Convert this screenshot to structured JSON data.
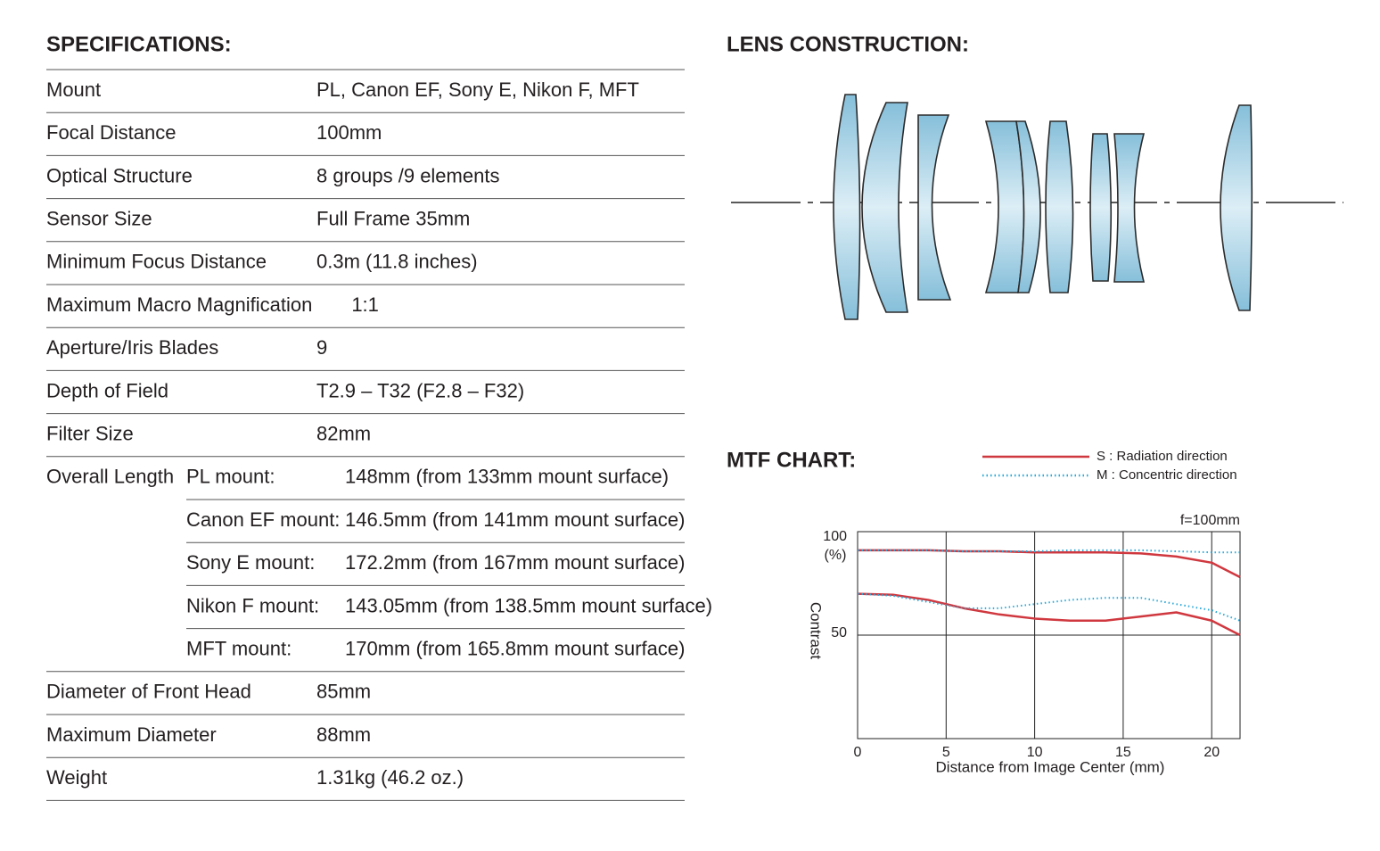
{
  "specifications": {
    "title": "SPECIFICATIONS:",
    "rows": [
      {
        "label": "Mount",
        "value": "PL, Canon EF, Sony E, Nikon F, MFT"
      },
      {
        "label": "Focal Distance",
        "value": "100mm"
      },
      {
        "label": "Optical Structure",
        "value": "8 groups /9 elements"
      },
      {
        "label": "Sensor Size",
        "value": "Full Frame 35mm"
      },
      {
        "label": "Minimum Focus Distance",
        "value": "0.3m (11.8 inches)"
      },
      {
        "label": "Maximum Macro Magnification",
        "value": "1:1"
      },
      {
        "label": "Aperture/Iris Blades",
        "value": "9"
      },
      {
        "label": "Depth of Field",
        "value": "T2.9 – T32 (F2.8 – F32)"
      },
      {
        "label": "Filter Size",
        "value": "82mm"
      },
      {
        "label": "Overall Length",
        "items": [
          {
            "mount": "PL mount:",
            "value": "148mm (from 133mm mount surface)"
          },
          {
            "mount": "Canon EF mount:",
            "value": "146.5mm (from 141mm mount surface)"
          },
          {
            "mount": "Sony E mount:",
            "value": "172.2mm (from 167mm mount surface)"
          },
          {
            "mount": "Nikon F mount:",
            "value": "143.05mm (from 138.5mm mount surface)"
          },
          {
            "mount": "MFT mount:",
            "value": "170mm (from 165.8mm mount surface)"
          }
        ]
      },
      {
        "label": "Diameter of Front Head",
        "value": "85mm"
      },
      {
        "label": "Maximum Diameter",
        "value": "88mm"
      },
      {
        "label": "Weight",
        "value": "1.31kg (46.2 oz.)"
      }
    ]
  },
  "lens_construction": {
    "title": "LENS CONSTRUCTION:"
  },
  "chart_data": {
    "type": "line",
    "title": "MTF CHART:",
    "subtitle": "f=100mm",
    "x_label": "Distance from Image Center (mm)",
    "y_label": "Contrast",
    "y_unit": "(%)",
    "x": [
      0,
      2,
      4,
      6,
      8,
      10,
      12,
      14,
      16,
      18,
      20,
      21.6
    ],
    "xlim": [
      0,
      21.6
    ],
    "xticks": [
      0,
      5,
      10,
      15,
      20
    ],
    "ylim": [
      0,
      100
    ],
    "yticks": [
      100,
      50
    ],
    "grid": true,
    "series": [
      {
        "name": "S : Radiation direction",
        "color": "#d0383f",
        "style": "solid",
        "values": [
          91,
          91,
          91,
          90.5,
          90.5,
          90,
          90,
          90,
          89.5,
          88,
          85,
          78
        ]
      },
      {
        "name": "M : Concentric direction",
        "color": "#2aa8d8",
        "style": "dotted",
        "values": [
          91,
          91,
          91,
          90.5,
          90.5,
          90.5,
          91,
          91,
          91,
          90.5,
          90,
          90
        ]
      },
      {
        "values": [
          70,
          69.5,
          67,
          63,
          60,
          58,
          57,
          57,
          59,
          61,
          57,
          50
        ],
        "color": "#d0383f",
        "style": "solid"
      },
      {
        "values": [
          70,
          69,
          66,
          63,
          63,
          65,
          67,
          68,
          68,
          65,
          62,
          57
        ],
        "color": "#2aa8d8",
        "style": "dotted"
      }
    ]
  }
}
